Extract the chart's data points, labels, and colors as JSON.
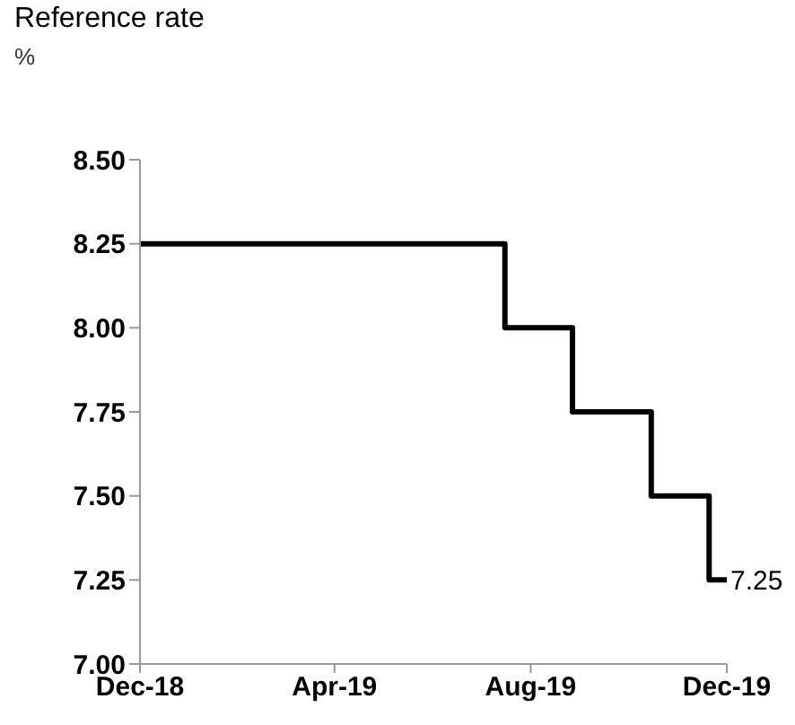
{
  "chart_data": {
    "type": "step",
    "title": "Reference rate",
    "ylabel": "%",
    "x": [
      "2018-12-01",
      "2019-07-16",
      "2019-08-27",
      "2019-10-15",
      "2019-11-20",
      "2019-12-01"
    ],
    "series": [
      {
        "color": "#000000",
        "values": [
          8.25,
          8.0,
          7.75,
          7.5,
          7.25,
          7.25
        ]
      }
    ],
    "xlim": [
      "2018-12-01",
      "2019-12-01"
    ],
    "xticks": [
      {
        "value": "2018-12-01",
        "label": "Dec-18"
      },
      {
        "value": "2019-04-01",
        "label": "Apr-19"
      },
      {
        "value": "2019-08-01",
        "label": "Aug-19"
      },
      {
        "value": "2019-12-01",
        "label": "Dec-19"
      }
    ],
    "ylim": [
      7.0,
      8.5
    ],
    "yticks": [
      {
        "value": 7.0,
        "label": "7.00"
      },
      {
        "value": 7.25,
        "label": "7.25"
      },
      {
        "value": 7.5,
        "label": "7.50"
      },
      {
        "value": 7.75,
        "label": "7.75"
      },
      {
        "value": 8.0,
        "label": "8.00"
      },
      {
        "value": 8.25,
        "label": "8.25"
      },
      {
        "value": 8.5,
        "label": "8.50"
      }
    ],
    "grid": false,
    "legend": false,
    "marker": "none",
    "annotations": [
      {
        "text": "7.25",
        "x": "2019-12-01",
        "y": 7.25
      }
    ]
  }
}
